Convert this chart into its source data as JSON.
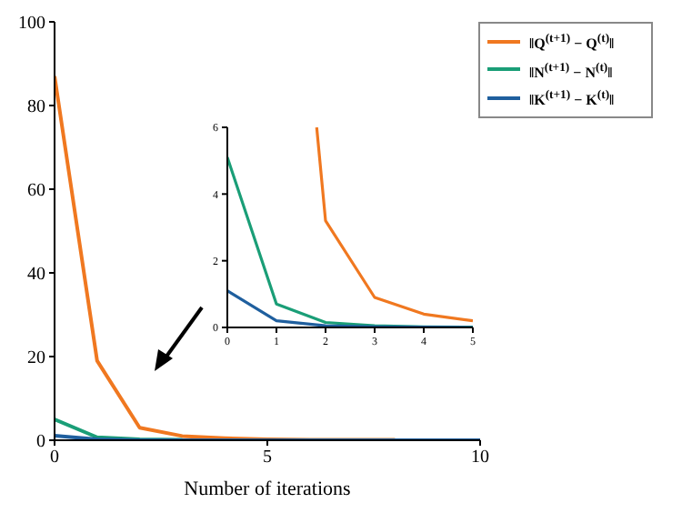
{
  "chart_data": [
    {
      "type": "line",
      "xlabel": "Number of iterations",
      "x": [
        0,
        1,
        2,
        3,
        4,
        5,
        6,
        7,
        8,
        9,
        10
      ],
      "xlim": [
        0,
        10
      ],
      "xticks": [
        0,
        5,
        10
      ],
      "ylim": [
        0,
        100
      ],
      "yticks": [
        0,
        20,
        40,
        60,
        80,
        100
      ],
      "legend": "top right",
      "grid": false,
      "marker": "none",
      "series": [
        {
          "name": "‖Q$^{(t+1)}$ − Q$^{(t)}$‖",
          "color": "#f07820",
          "values": [
            87,
            19,
            3,
            1,
            0.5,
            0.2,
            0.1,
            0.1,
            0.1,
            null,
            null
          ]
        },
        {
          "name": "‖N$^{(t+1)}$ − N$^{(t)}$‖",
          "color": "#1a9e77",
          "values": [
            5,
            0.7,
            0.2,
            0.1,
            null,
            null,
            null,
            null,
            null,
            null,
            null
          ]
        },
        {
          "name": "‖K$^{(t+1)}$ − K$^{(t)}$‖",
          "color": "#1f5f9e",
          "values": [
            1.1,
            0.2,
            0,
            0,
            0,
            0,
            0,
            0,
            0,
            0,
            0
          ]
        }
      ]
    },
    {
      "type": "line",
      "x": [
        0,
        1,
        2,
        3,
        4,
        5
      ],
      "xlim": [
        0,
        5
      ],
      "xticks": [
        0,
        1,
        2,
        3,
        4,
        5
      ],
      "ylim": [
        0,
        6
      ],
      "yticks": [
        0,
        2,
        4,
        6
      ],
      "grid": false,
      "marker": "none",
      "series": [
        {
          "color": "#f07820",
          "x": [
            1.82,
            2,
            3,
            4,
            5
          ],
          "values": [
            6,
            3.2,
            0.9,
            0.4,
            0.2
          ]
        },
        {
          "color": "#1a9e77",
          "values": [
            5.1,
            0.7,
            0.15,
            0.05,
            0.02,
            0.01
          ]
        },
        {
          "color": "#1f5f9e",
          "values": [
            1.1,
            0.2,
            0.05,
            0.02,
            0.01,
            0
          ]
        }
      ]
    }
  ]
}
